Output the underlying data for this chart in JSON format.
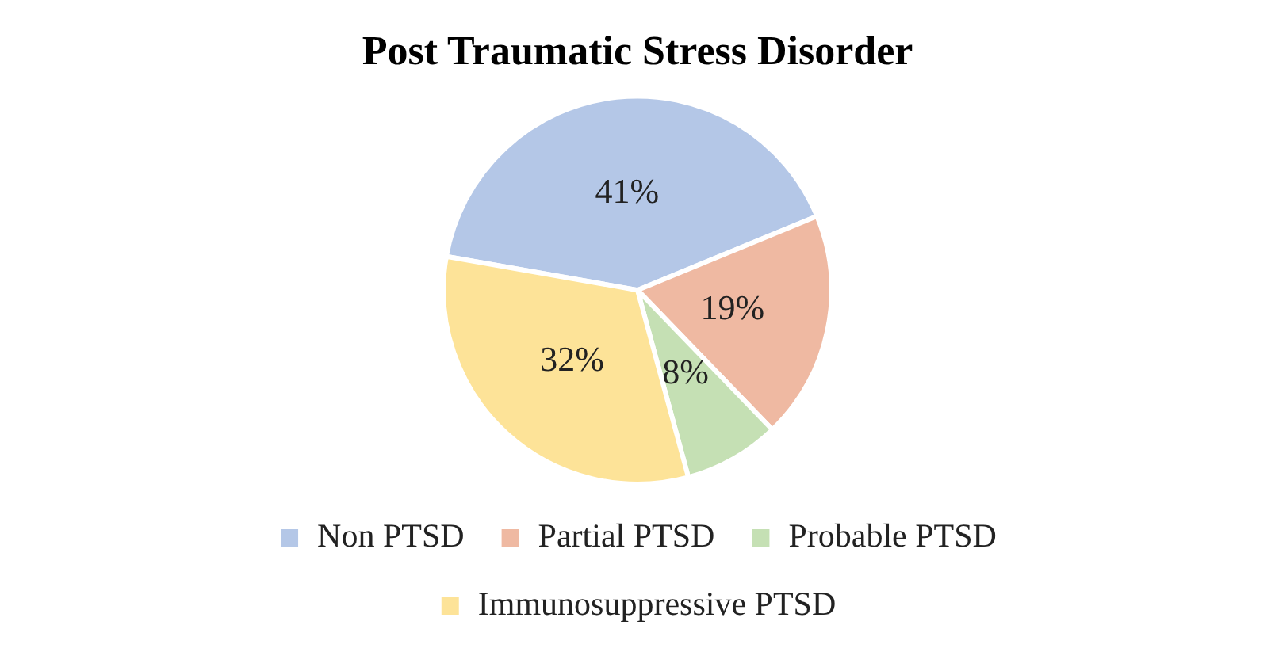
{
  "chart_data": {
    "type": "pie",
    "title": "Post Traumatic Stress Disorder",
    "categories": [
      "Non PTSD",
      "Partial PTSD",
      "Probable PTSD",
      "Immunosuppressive PTSD"
    ],
    "values": [
      41,
      19,
      8,
      32
    ],
    "colors": [
      "#b4c7e7",
      "#efb9a2",
      "#c5e0b4",
      "#fde398"
    ],
    "value_labels": [
      "41%",
      "19%",
      "8%",
      "32%"
    ],
    "legend": "bottom"
  }
}
